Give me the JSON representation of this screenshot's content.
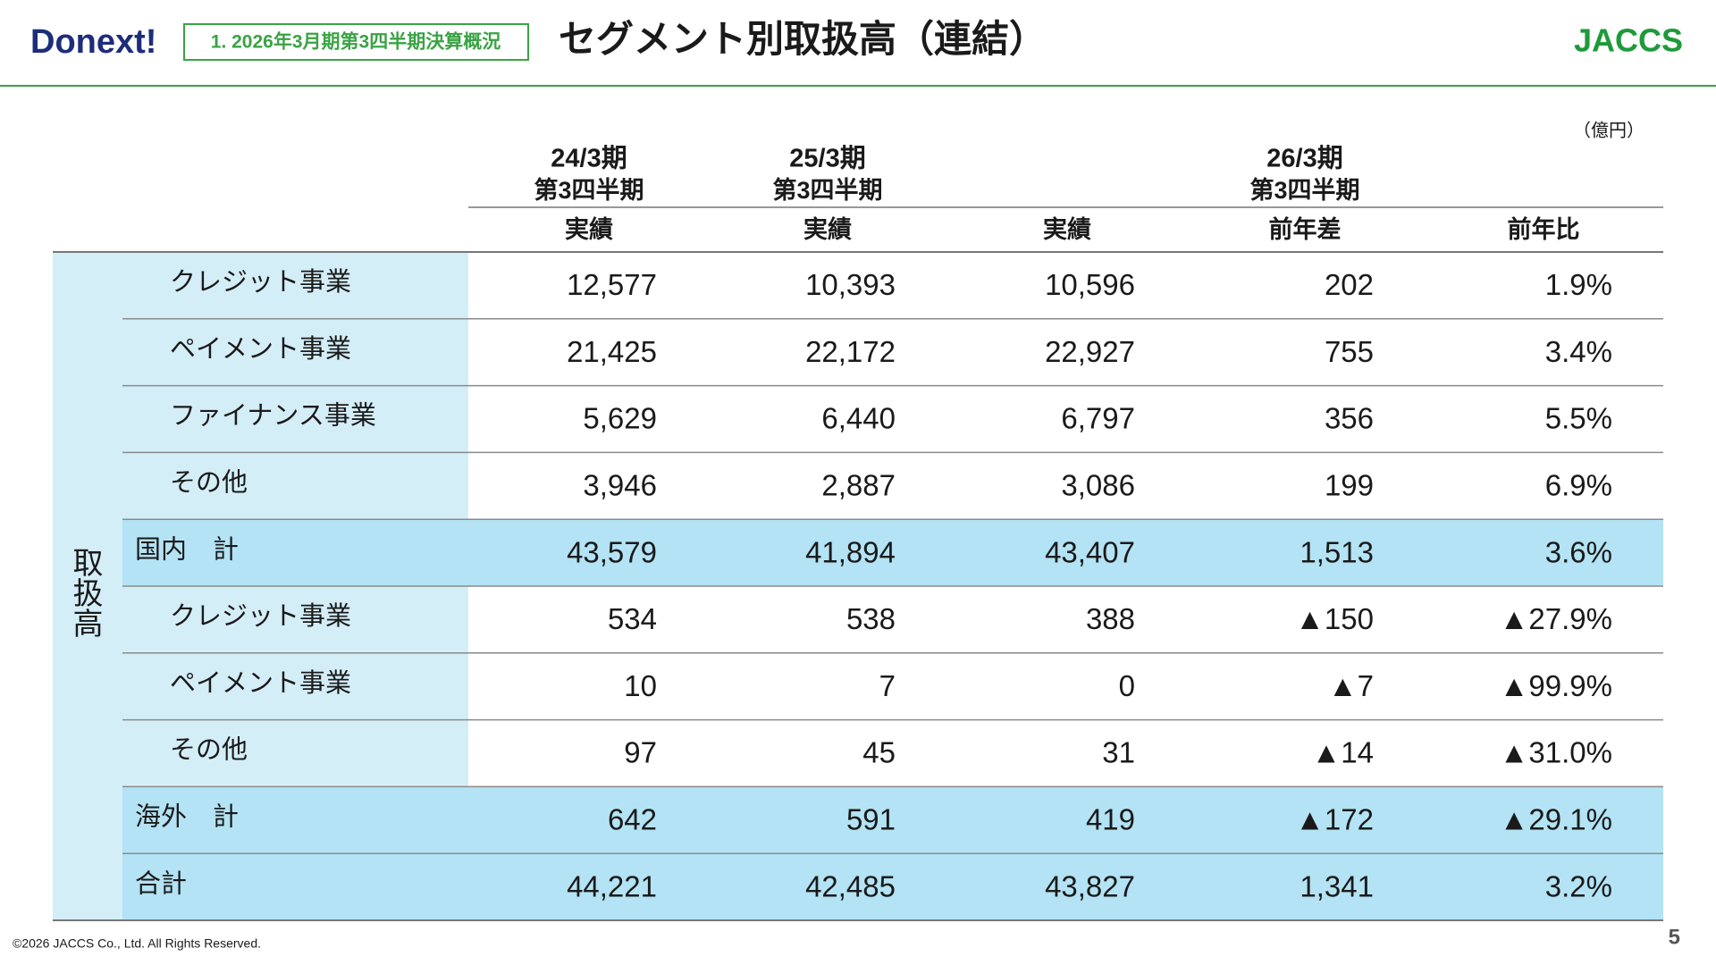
{
  "header": {
    "logo": "Donext!",
    "badge": "1. 2026年3月期第3四半期決算概況",
    "title": "セグメント別取扱高（連結）",
    "brand": "JACCS"
  },
  "table": {
    "unit": "（億円）",
    "periods": [
      {
        "year": "24/3期",
        "quarter": "第3四半期"
      },
      {
        "year": "25/3期",
        "quarter": "第3四半期"
      },
      {
        "year": "26/3期",
        "quarter": "第3四半期"
      }
    ],
    "columns": [
      "実績",
      "実績",
      "実績",
      "前年差",
      "前年比"
    ],
    "group_label": "取扱高",
    "rows": [
      {
        "label": "クレジット事業",
        "cells": [
          "12,577",
          "10,393",
          "10,596",
          "202",
          "1.9%"
        ]
      },
      {
        "label": "ペイメント事業",
        "cells": [
          "21,425",
          "22,172",
          "22,927",
          "755",
          "3.4%"
        ]
      },
      {
        "label": "ファイナンス事業",
        "cells": [
          "5,629",
          "6,440",
          "6,797",
          "356",
          "5.5%"
        ]
      },
      {
        "label": "その他",
        "cells": [
          "3,946",
          "2,887",
          "3,086",
          "199",
          "6.9%"
        ]
      },
      {
        "label": "国内　計",
        "cells": [
          "43,579",
          "41,894",
          "43,407",
          "1,513",
          "3.6%"
        ]
      },
      {
        "label": "クレジット事業",
        "cells": [
          "534",
          "538",
          "388",
          "▲150",
          "▲27.9%"
        ]
      },
      {
        "label": "ペイメント事業",
        "cells": [
          "10",
          "7",
          "0",
          "▲7",
          "▲99.9%"
        ]
      },
      {
        "label": "その他",
        "cells": [
          "97",
          "45",
          "31",
          "▲14",
          "▲31.0%"
        ]
      },
      {
        "label": "海外　計",
        "cells": [
          "642",
          "591",
          "419",
          "▲172",
          "▲29.1%"
        ]
      },
      {
        "label": "合計",
        "cells": [
          "44,221",
          "42,485",
          "43,827",
          "1,341",
          "3.2%"
        ]
      }
    ]
  },
  "footer": {
    "copyright": "©2026 JACCS Co., Ltd. All Rights Reserved.",
    "page": "5"
  }
}
